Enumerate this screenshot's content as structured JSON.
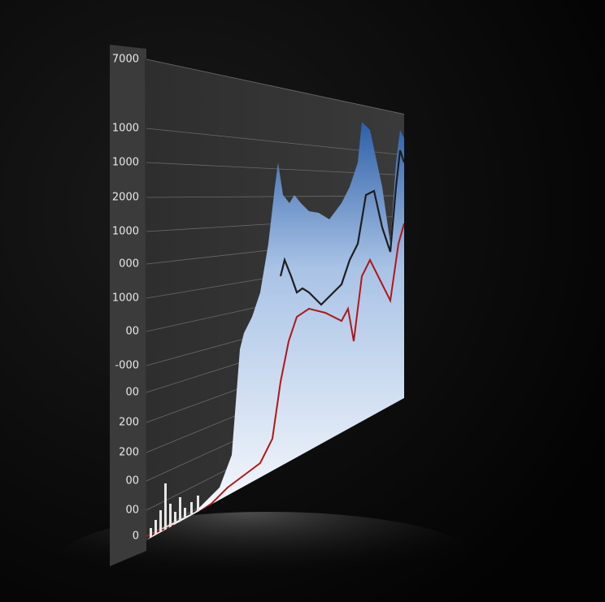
{
  "screen": {
    "axis_labels": [
      "7000",
      "1000",
      "1000",
      "2000",
      "1000",
      "000",
      "1000",
      "00",
      "-000",
      "00",
      "200",
      "200",
      "00",
      "00",
      "0"
    ]
  }
}
